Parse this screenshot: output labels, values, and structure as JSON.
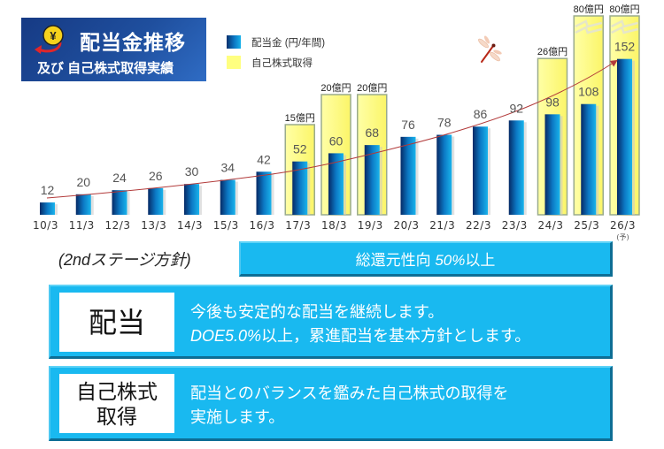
{
  "header": {
    "title_line1": "配当金推移",
    "title_line2": "及び 自己株式取得実績",
    "icon": "yen-coin-icon"
  },
  "legend": [
    {
      "label": "配当金 (円/年間)",
      "color": "#0c78c4"
    },
    {
      "label": "自己株式取得",
      "color": "#ffff80"
    }
  ],
  "chart_data": {
    "type": "bar",
    "title": "配当金推移 及び 自己株式取得実績",
    "categories": [
      "10/3",
      "11/3",
      "12/3",
      "13/3",
      "14/3",
      "15/3",
      "16/3",
      "17/3",
      "18/3",
      "19/3",
      "20/3",
      "21/3",
      "22/3",
      "23/3",
      "24/3",
      "25/3",
      "26/3"
    ],
    "forecast_note": "(予)",
    "series": [
      {
        "name": "配当金 (円/年間)",
        "unit": "円",
        "values": [
          12,
          20,
          24,
          26,
          30,
          34,
          42,
          52,
          60,
          68,
          76,
          78,
          86,
          92,
          98,
          108,
          152
        ]
      },
      {
        "name": "自己株式取得",
        "unit": "億円",
        "values": [
          null,
          null,
          null,
          null,
          null,
          null,
          null,
          15,
          20,
          20,
          null,
          null,
          null,
          null,
          26,
          80,
          80
        ],
        "axis_break_values": [
          80
        ]
      }
    ],
    "trend": "rising arrow over dividend bars",
    "xlabel": "",
    "ylabel": "",
    "grid": false,
    "legend_position": "top-left"
  },
  "policy": {
    "stage_label": "(2ndステージ方針)",
    "summary": {
      "prefix": "総還元性向 ",
      "highlight": "50%",
      "suffix": "以上"
    },
    "dividend": {
      "title": "配当",
      "line1": "今後も安定的な配当を継続します。",
      "line2_italic": "DOE5.0%",
      "line2_rest": "以上，累進配当を基本方針とします。"
    },
    "buyback": {
      "title_line1": "自己株式",
      "title_line2": "取得",
      "line1": "配当とのバランスを鑑みた自己株式の取得を",
      "line2": "実施します。"
    }
  },
  "colors": {
    "bar_dark": "#07306e",
    "bar_light": "#18b2ea",
    "buyback_fill": "#ffff80",
    "panel": "#19b9f0",
    "trend": "#b23a3a",
    "title_bg": "#1f4f9e"
  }
}
